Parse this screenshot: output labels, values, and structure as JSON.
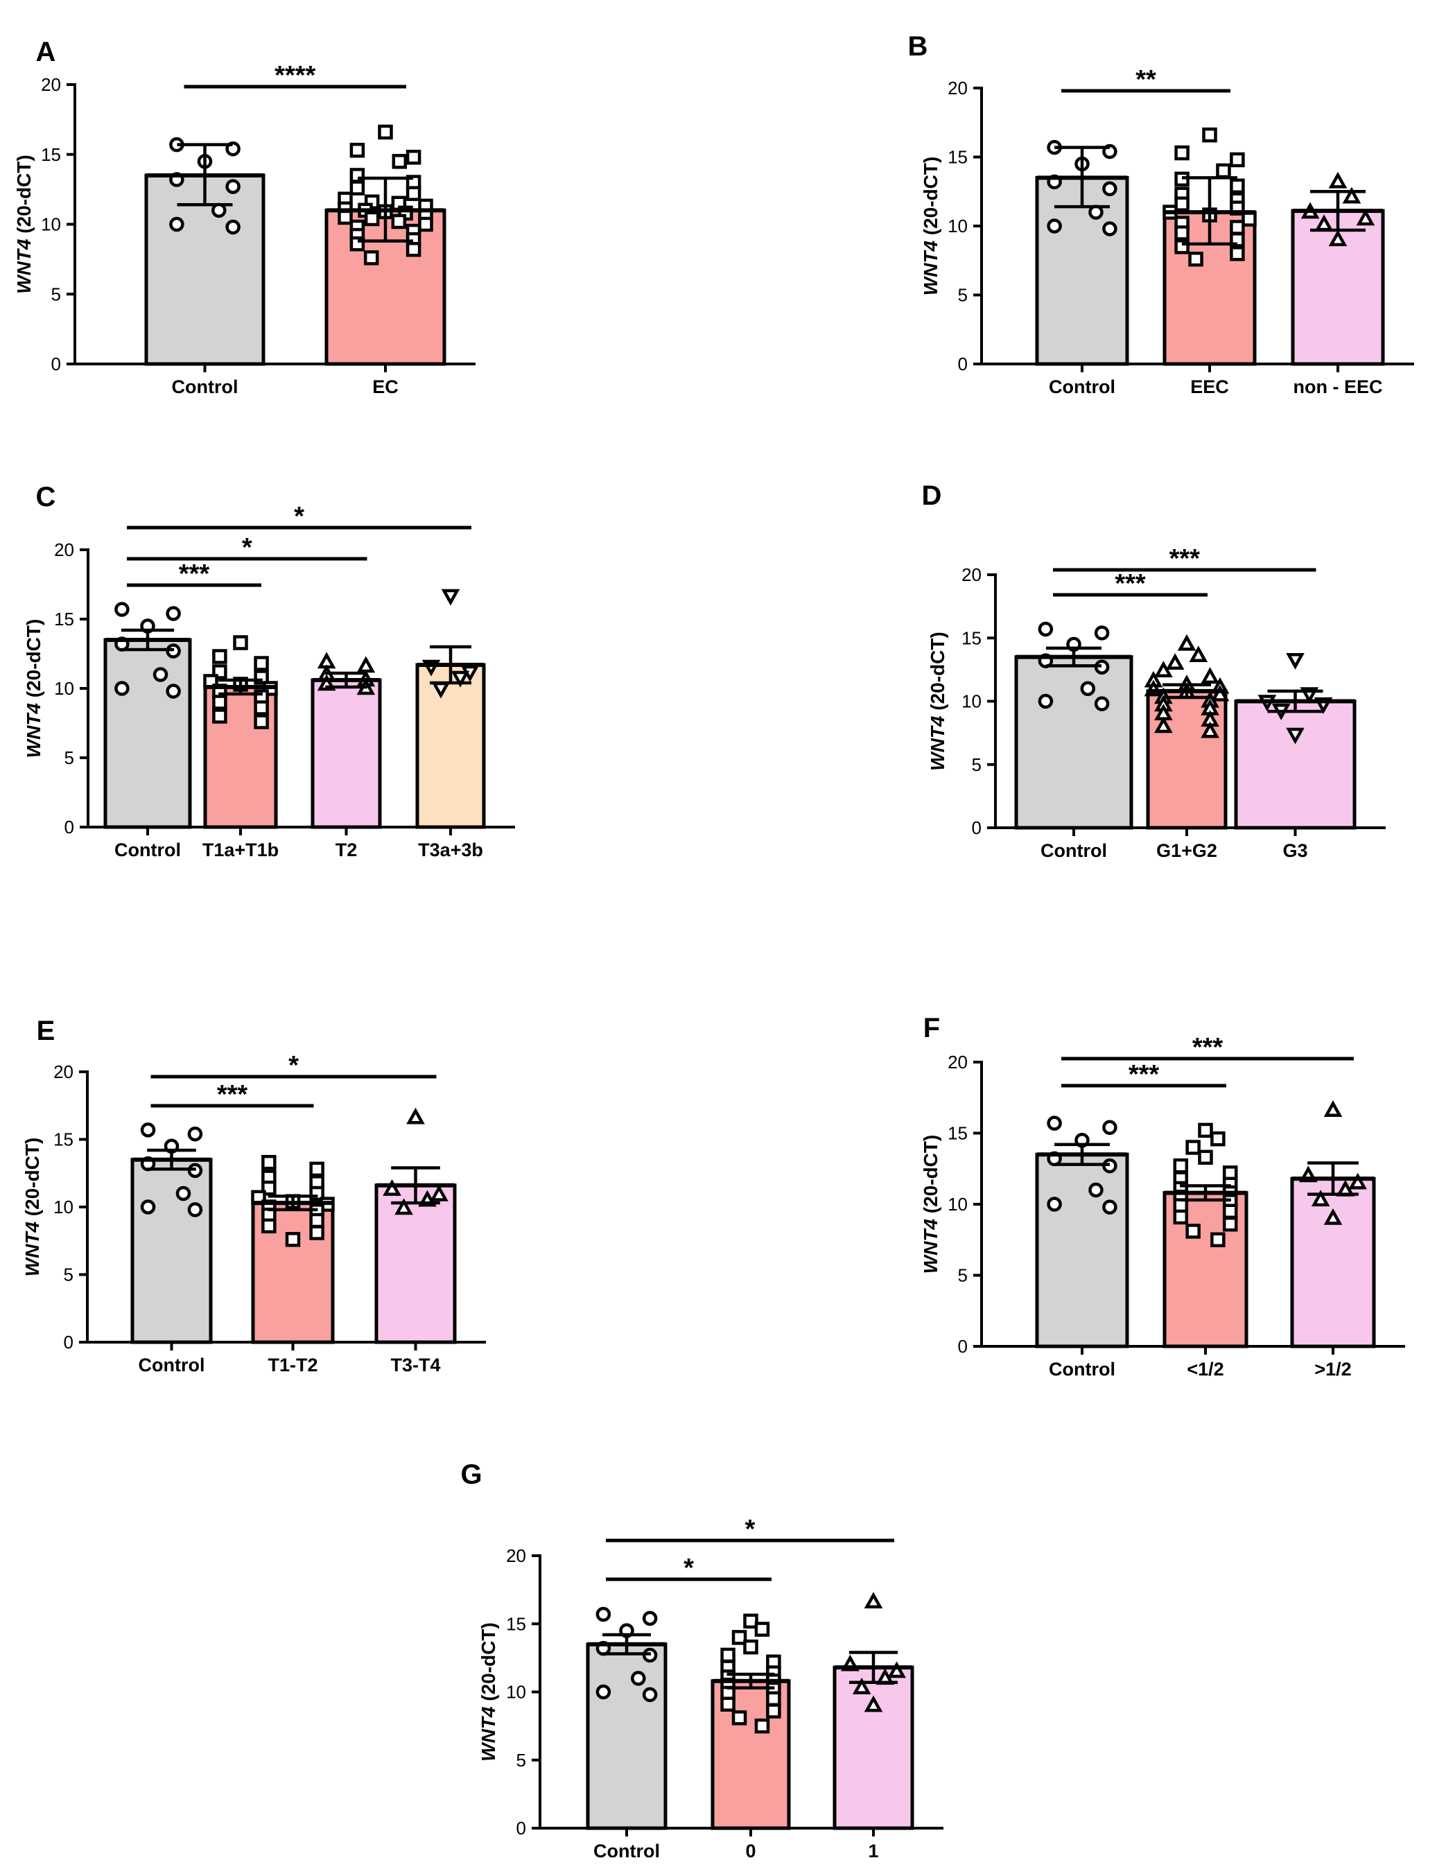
{
  "figure": {
    "colors": {
      "control": "#d3d3d3",
      "group_red": "#f9a19f",
      "group_pink": "#f8c8ec",
      "group_peach": "#fde0c0",
      "ink": "#000000"
    },
    "ylabel_italic": "WNT4",
    "ylabel_rest": " (20-dCT)"
  },
  "chart_data": [
    {
      "panel": "A",
      "type": "bar",
      "ylabel": "WNT4 (20-dCT)",
      "ylim": [
        0,
        20
      ],
      "yticks": [
        0,
        5,
        10,
        15,
        20
      ],
      "categories": [
        "Control",
        "EC"
      ],
      "values": [
        13.5,
        11.0
      ],
      "errors": [
        [
          11.4,
          15.7
        ],
        [
          8.8,
          13.3
        ]
      ],
      "colors": [
        "#d3d3d3",
        "#f9a19f"
      ],
      "markers": [
        "circle",
        "square"
      ],
      "points": [
        [
          15.7,
          15.4,
          14.5,
          13.2,
          12.7,
          11.0,
          10.0,
          9.8
        ],
        [
          16.6,
          15.3,
          14.8,
          14.5,
          13.5,
          13.0,
          12.6,
          12.2,
          11.8,
          11.6,
          11.5,
          11.3,
          11.1,
          11.0,
          10.9,
          10.8,
          10.6,
          10.5,
          10.4,
          10.2,
          10.0,
          9.8,
          9.5,
          9.2,
          8.9,
          8.6,
          8.2,
          7.6
        ]
      ],
      "significance": [
        {
          "from": 0,
          "to": 1,
          "label": "****"
        }
      ]
    },
    {
      "panel": "B",
      "type": "bar",
      "ylabel": "WNT4 (20-dCT)",
      "ylim": [
        0,
        20
      ],
      "yticks": [
        0,
        5,
        10,
        15,
        20
      ],
      "categories": [
        "Control",
        "EEC",
        "non - EEC"
      ],
      "values": [
        13.5,
        11.0,
        11.1
      ],
      "errors": [
        [
          11.4,
          15.7
        ],
        [
          8.7,
          13.5
        ],
        [
          9.7,
          12.5
        ]
      ],
      "colors": [
        "#d3d3d3",
        "#f9a19f",
        "#f8c8ec"
      ],
      "markers": [
        "circle",
        "square",
        "triangle"
      ],
      "points": [
        [
          15.7,
          15.4,
          14.5,
          13.2,
          12.7,
          11.0,
          10.0,
          9.8
        ],
        [
          16.6,
          15.3,
          14.8,
          14.0,
          13.4,
          12.9,
          12.3,
          11.9,
          11.6,
          11.3,
          11.0,
          10.8,
          10.5,
          10.2,
          9.9,
          9.5,
          9.0,
          8.5,
          8.0,
          7.6
        ],
        [
          13.2,
          12.1,
          11.0,
          10.5,
          10.1,
          9.0
        ]
      ],
      "significance": [
        {
          "from": 0,
          "to": 1,
          "label": "**"
        }
      ]
    },
    {
      "panel": "C",
      "type": "bar",
      "ylabel": "WNT4 (20-dCT)",
      "ylim": [
        0,
        20
      ],
      "yticks": [
        0,
        5,
        10,
        15,
        20
      ],
      "categories": [
        "Control",
        "T1a+T1b",
        "T2",
        "T3a+3b"
      ],
      "values": [
        13.5,
        10.1,
        10.6,
        11.7
      ],
      "errors": [
        [
          12.8,
          14.2
        ],
        [
          9.6,
          10.6
        ],
        [
          10.1,
          11.1
        ],
        [
          10.4,
          13.0
        ]
      ],
      "colors": [
        "#d3d3d3",
        "#f9a19f",
        "#f8c8ec",
        "#fde0c0"
      ],
      "markers": [
        "circle",
        "square",
        "triangle",
        "triangle-down"
      ],
      "points": [
        [
          15.7,
          15.4,
          14.5,
          13.2,
          12.7,
          11.0,
          10.0,
          9.8
        ],
        [
          13.3,
          12.3,
          11.8,
          11.2,
          10.8,
          10.5,
          10.3,
          10.0,
          9.8,
          9.4,
          9.0,
          8.6,
          8.0,
          7.6
        ],
        [
          11.9,
          11.6,
          11.0,
          10.6,
          10.3,
          10.0
        ],
        [
          16.7,
          11.6,
          11.2,
          10.8,
          10.0
        ]
      ],
      "significance": [
        {
          "from": 0,
          "to": 1,
          "label": "***"
        },
        {
          "from": 0,
          "to": 2,
          "label": "*"
        },
        {
          "from": 0,
          "to": 3,
          "label": "*"
        }
      ]
    },
    {
      "panel": "D",
      "type": "bar",
      "ylabel": "WNT4 (20-dCT)",
      "ylim": [
        0,
        20
      ],
      "yticks": [
        0,
        5,
        10,
        15,
        20
      ],
      "categories": [
        "Control",
        "G1+G2",
        "G3"
      ],
      "values": [
        13.5,
        10.8,
        10.0
      ],
      "errors": [
        [
          12.8,
          14.2
        ],
        [
          10.3,
          11.3
        ],
        [
          9.2,
          10.8
        ]
      ],
      "colors": [
        "#d3d3d3",
        "#f9a19f",
        "#f8c8ec"
      ],
      "markers": [
        "circle",
        "triangle",
        "triangle-down"
      ],
      "points": [
        [
          15.7,
          15.4,
          14.5,
          13.2,
          12.7,
          11.0,
          10.0,
          9.8
        ],
        [
          14.5,
          13.6,
          13.0,
          12.4,
          11.9,
          11.6,
          11.3,
          11.1,
          10.9,
          10.7,
          10.5,
          10.3,
          10.0,
          9.7,
          9.4,
          9.0,
          8.5,
          8.0,
          7.6
        ],
        [
          13.3,
          10.6,
          10.0,
          9.8,
          9.3,
          7.4
        ]
      ],
      "significance": [
        {
          "from": 0,
          "to": 1,
          "label": "***"
        },
        {
          "from": 0,
          "to": 2,
          "label": "***"
        }
      ]
    },
    {
      "panel": "E",
      "type": "bar",
      "ylabel": "WNT4 (20-dCT)",
      "ylim": [
        0,
        20
      ],
      "yticks": [
        0,
        5,
        10,
        15,
        20
      ],
      "categories": [
        "Control",
        "T1-T2",
        "T3-T4"
      ],
      "values": [
        13.5,
        10.3,
        11.6
      ],
      "errors": [
        [
          12.8,
          14.2
        ],
        [
          9.8,
          10.8
        ],
        [
          10.3,
          12.9
        ]
      ],
      "colors": [
        "#d3d3d3",
        "#f9a19f",
        "#f8c8ec"
      ],
      "markers": [
        "circle",
        "square",
        "triangle"
      ],
      "points": [
        [
          15.7,
          15.4,
          14.5,
          13.2,
          12.7,
          11.0,
          10.0,
          9.8
        ],
        [
          13.3,
          12.8,
          12.2,
          11.8,
          11.4,
          11.0,
          10.7,
          10.4,
          10.2,
          10.0,
          9.7,
          9.4,
          9.0,
          8.6,
          8.1,
          7.6
        ],
        [
          16.6,
          11.3,
          10.9,
          10.5,
          9.9
        ]
      ],
      "significance": [
        {
          "from": 0,
          "to": 1,
          "label": "***"
        },
        {
          "from": 0,
          "to": 2,
          "label": "*"
        }
      ]
    },
    {
      "panel": "F",
      "type": "bar",
      "ylabel": "WNT4 (20-dCT)",
      "ylim": [
        0,
        20
      ],
      "yticks": [
        0,
        5,
        10,
        15,
        20
      ],
      "categories": [
        "Control",
        "<1/2",
        ">1/2"
      ],
      "values": [
        13.5,
        10.8,
        11.8
      ],
      "errors": [
        [
          12.8,
          14.2
        ],
        [
          10.3,
          11.3
        ],
        [
          10.7,
          12.9
        ]
      ],
      "colors": [
        "#d3d3d3",
        "#f9a19f",
        "#f8c8ec"
      ],
      "markers": [
        "circle",
        "square",
        "triangle"
      ],
      "points": [
        [
          15.7,
          15.4,
          14.5,
          13.2,
          12.7,
          11.0,
          10.0,
          9.8
        ],
        [
          15.2,
          14.6,
          14.0,
          13.3,
          12.7,
          12.2,
          11.8,
          11.4,
          11.1,
          10.8,
          10.5,
          10.2,
          9.9,
          9.5,
          9.1,
          8.6,
          8.1,
          7.5
        ],
        [
          16.6,
          12.0,
          11.5,
          11.0,
          10.3,
          9.0
        ]
      ],
      "significance": [
        {
          "from": 0,
          "to": 1,
          "label": "***"
        },
        {
          "from": 0,
          "to": 2,
          "label": "***"
        }
      ]
    },
    {
      "panel": "G",
      "type": "bar",
      "ylabel": "WNT4 (20-dCT)",
      "ylim": [
        0,
        20
      ],
      "yticks": [
        0,
        5,
        10,
        15,
        20
      ],
      "categories": [
        "Control",
        "0",
        "1"
      ],
      "values": [
        13.5,
        10.8,
        11.8
      ],
      "errors": [
        [
          12.8,
          14.2
        ],
        [
          10.3,
          11.3
        ],
        [
          10.7,
          12.9
        ]
      ],
      "colors": [
        "#d3d3d3",
        "#f9a19f",
        "#f8c8ec"
      ],
      "markers": [
        "circle",
        "square",
        "triangle"
      ],
      "points": [
        [
          15.7,
          15.4,
          14.5,
          13.2,
          12.7,
          11.0,
          10.0,
          9.8
        ],
        [
          15.2,
          14.6,
          14.0,
          13.3,
          12.7,
          12.2,
          11.8,
          11.4,
          11.1,
          10.8,
          10.5,
          10.2,
          9.9,
          9.5,
          9.1,
          8.6,
          8.1,
          7.5
        ],
        [
          16.6,
          12.0,
          11.5,
          11.0,
          10.3,
          9.0
        ]
      ],
      "significance": [
        {
          "from": 0,
          "to": 1,
          "label": "*"
        },
        {
          "from": 0,
          "to": 2,
          "label": "*"
        }
      ]
    }
  ]
}
